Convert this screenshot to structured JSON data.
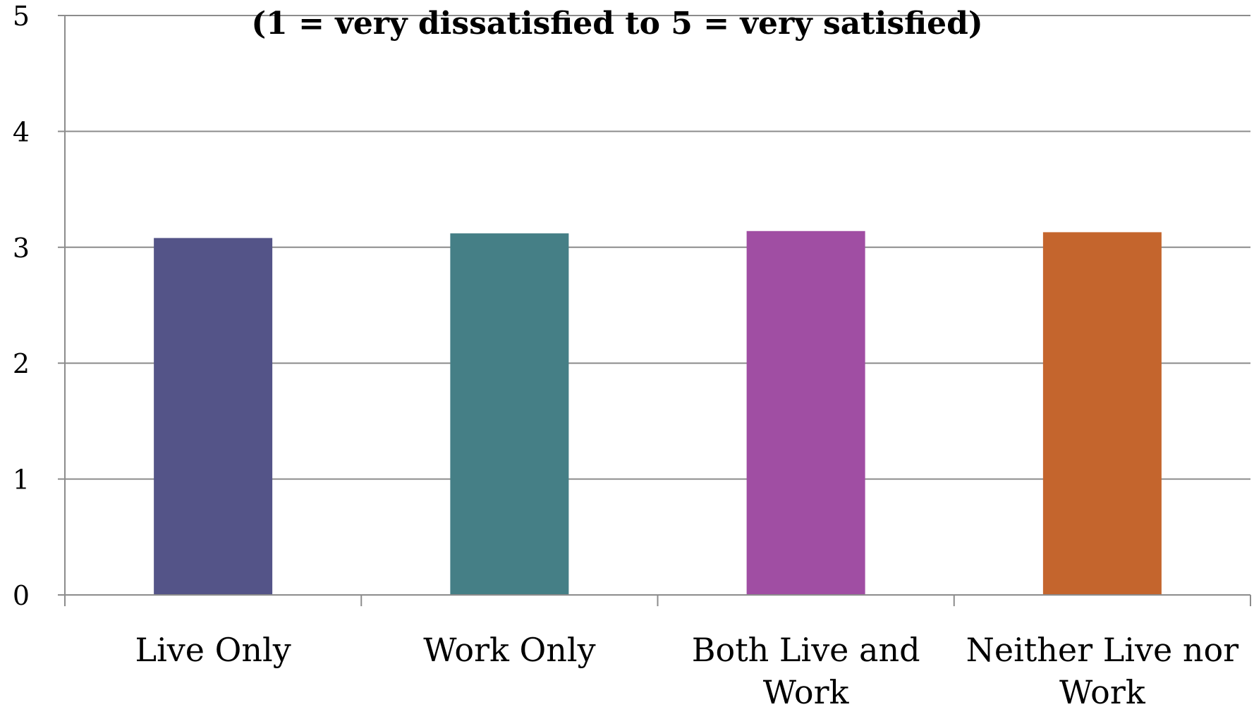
{
  "chart_data": {
    "type": "bar",
    "subtitle": "(1 = very dissatisfied to 5 = very satisfied)",
    "categories": [
      [
        "Live Only"
      ],
      [
        "Work Only"
      ],
      [
        "Both Live and",
        "Work"
      ],
      [
        "Neither Live nor",
        "Work"
      ]
    ],
    "values": [
      3.08,
      3.12,
      3.14,
      3.13
    ],
    "colors": [
      "#545488",
      "#457f86",
      "#a04ea3",
      "#c4652d"
    ],
    "ylim": [
      0,
      5
    ],
    "yticks": [
      "0",
      "1",
      "2",
      "3",
      "4",
      "5"
    ],
    "grid": true,
    "legend": "none"
  }
}
